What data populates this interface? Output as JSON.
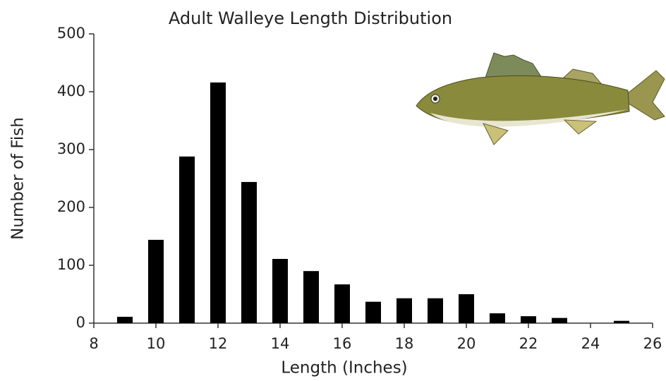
{
  "chart_data": {
    "type": "bar",
    "title": "Adult Walleye Length Distribution",
    "x_label": "Length (Inches)",
    "y_label": "Number of Fish",
    "x": [
      9,
      10,
      11,
      12,
      13,
      14,
      15,
      16,
      17,
      18,
      19,
      20,
      21,
      22,
      23,
      25
    ],
    "values": [
      11,
      144,
      288,
      416,
      244,
      111,
      90,
      67,
      37,
      43,
      43,
      50,
      17,
      12,
      9,
      4
    ],
    "color": "#000000",
    "xlim": [
      8,
      26
    ],
    "xticks": [
      8,
      10,
      12,
      14,
      16,
      18,
      20,
      22,
      24,
      26
    ],
    "ylim": [
      0,
      500
    ],
    "yticks": [
      0,
      100,
      200,
      300,
      400,
      500
    ]
  }
}
